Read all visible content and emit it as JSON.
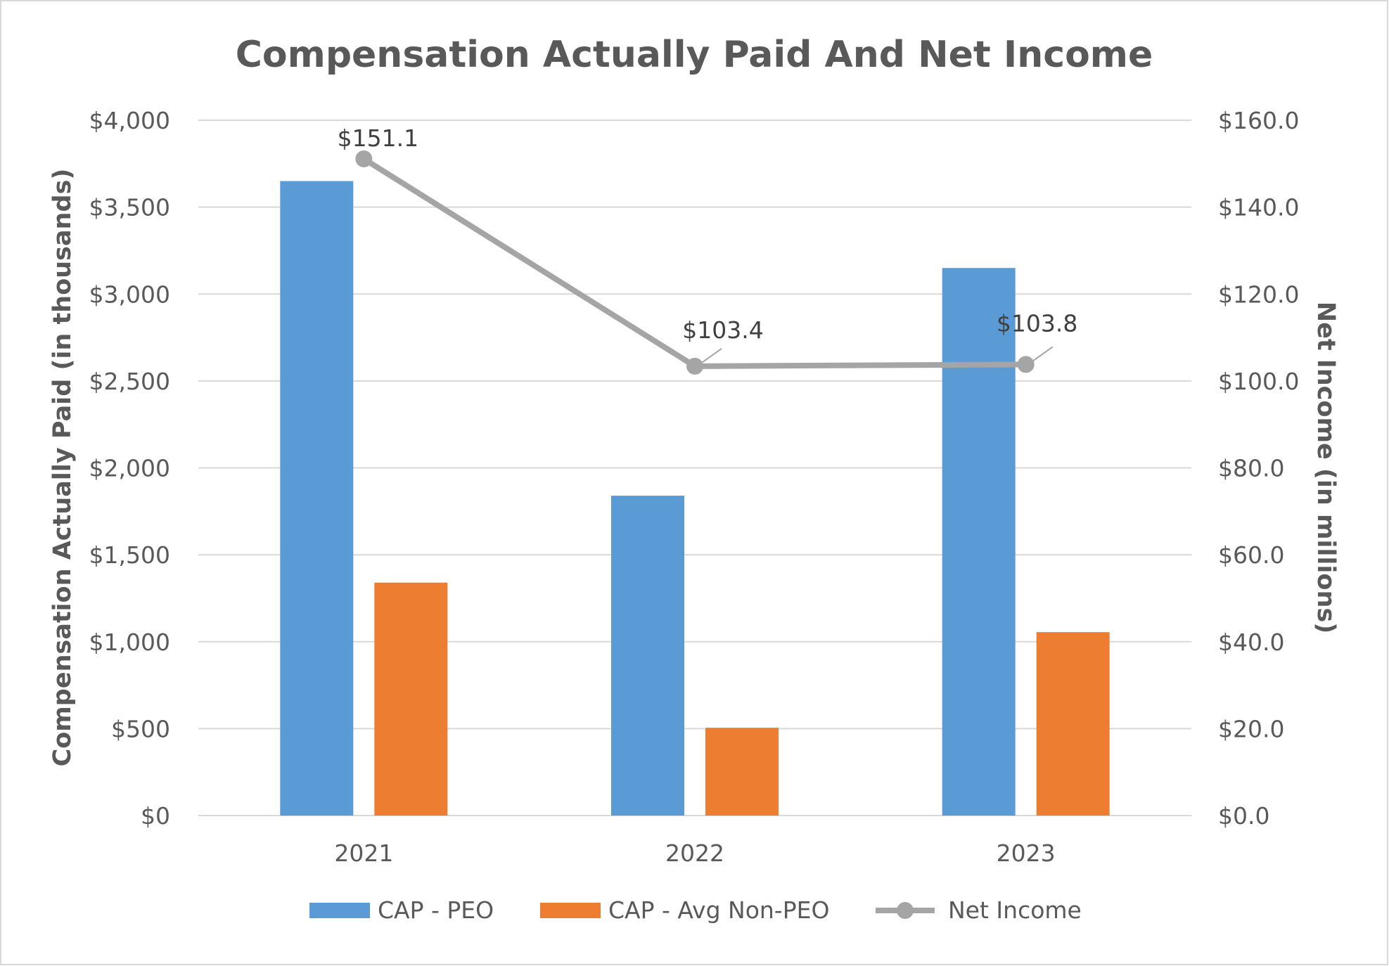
{
  "chart_data": {
    "type": "bar",
    "title": "Compensation Actually Paid And Net Income",
    "categories": [
      "2021",
      "2022",
      "2023"
    ],
    "ylabel": "Compensation Actually Paid (in thousands)",
    "y2label": "Net Income (in millions)",
    "ylim": [
      0,
      4000
    ],
    "y2lim": [
      0,
      160
    ],
    "yticks": [
      "$0",
      "$500",
      "$1,000",
      "$1,500",
      "$2,000",
      "$2,500",
      "$3,000",
      "$3,500",
      "$4,000"
    ],
    "yticks_values": [
      0,
      500,
      1000,
      1500,
      2000,
      2500,
      3000,
      3500,
      4000
    ],
    "y2ticks": [
      "$0.0",
      "$20.0",
      "$40.0",
      "$60.0",
      "$80.0",
      "$100.0",
      "$120.0",
      "$140.0",
      "$160.0"
    ],
    "y2ticks_values": [
      0,
      20,
      40,
      60,
      80,
      100,
      120,
      140,
      160
    ],
    "grid": true,
    "legend_position": "bottom",
    "series": [
      {
        "name": "CAP - PEO",
        "type": "bar",
        "axis": "left",
        "color": "#5b9bd5",
        "values": [
          3650,
          1840,
          3150
        ]
      },
      {
        "name": "CAP - Avg Non-PEO",
        "type": "bar",
        "axis": "left",
        "color": "#ed7d31",
        "values": [
          1340,
          505,
          1055
        ]
      },
      {
        "name": "Net Income",
        "type": "line",
        "axis": "right",
        "color": "#a5a5a5",
        "values": [
          151.1,
          103.4,
          103.8
        ],
        "labels": [
          "$151.1",
          "$103.4",
          "$103.8"
        ]
      }
    ]
  }
}
